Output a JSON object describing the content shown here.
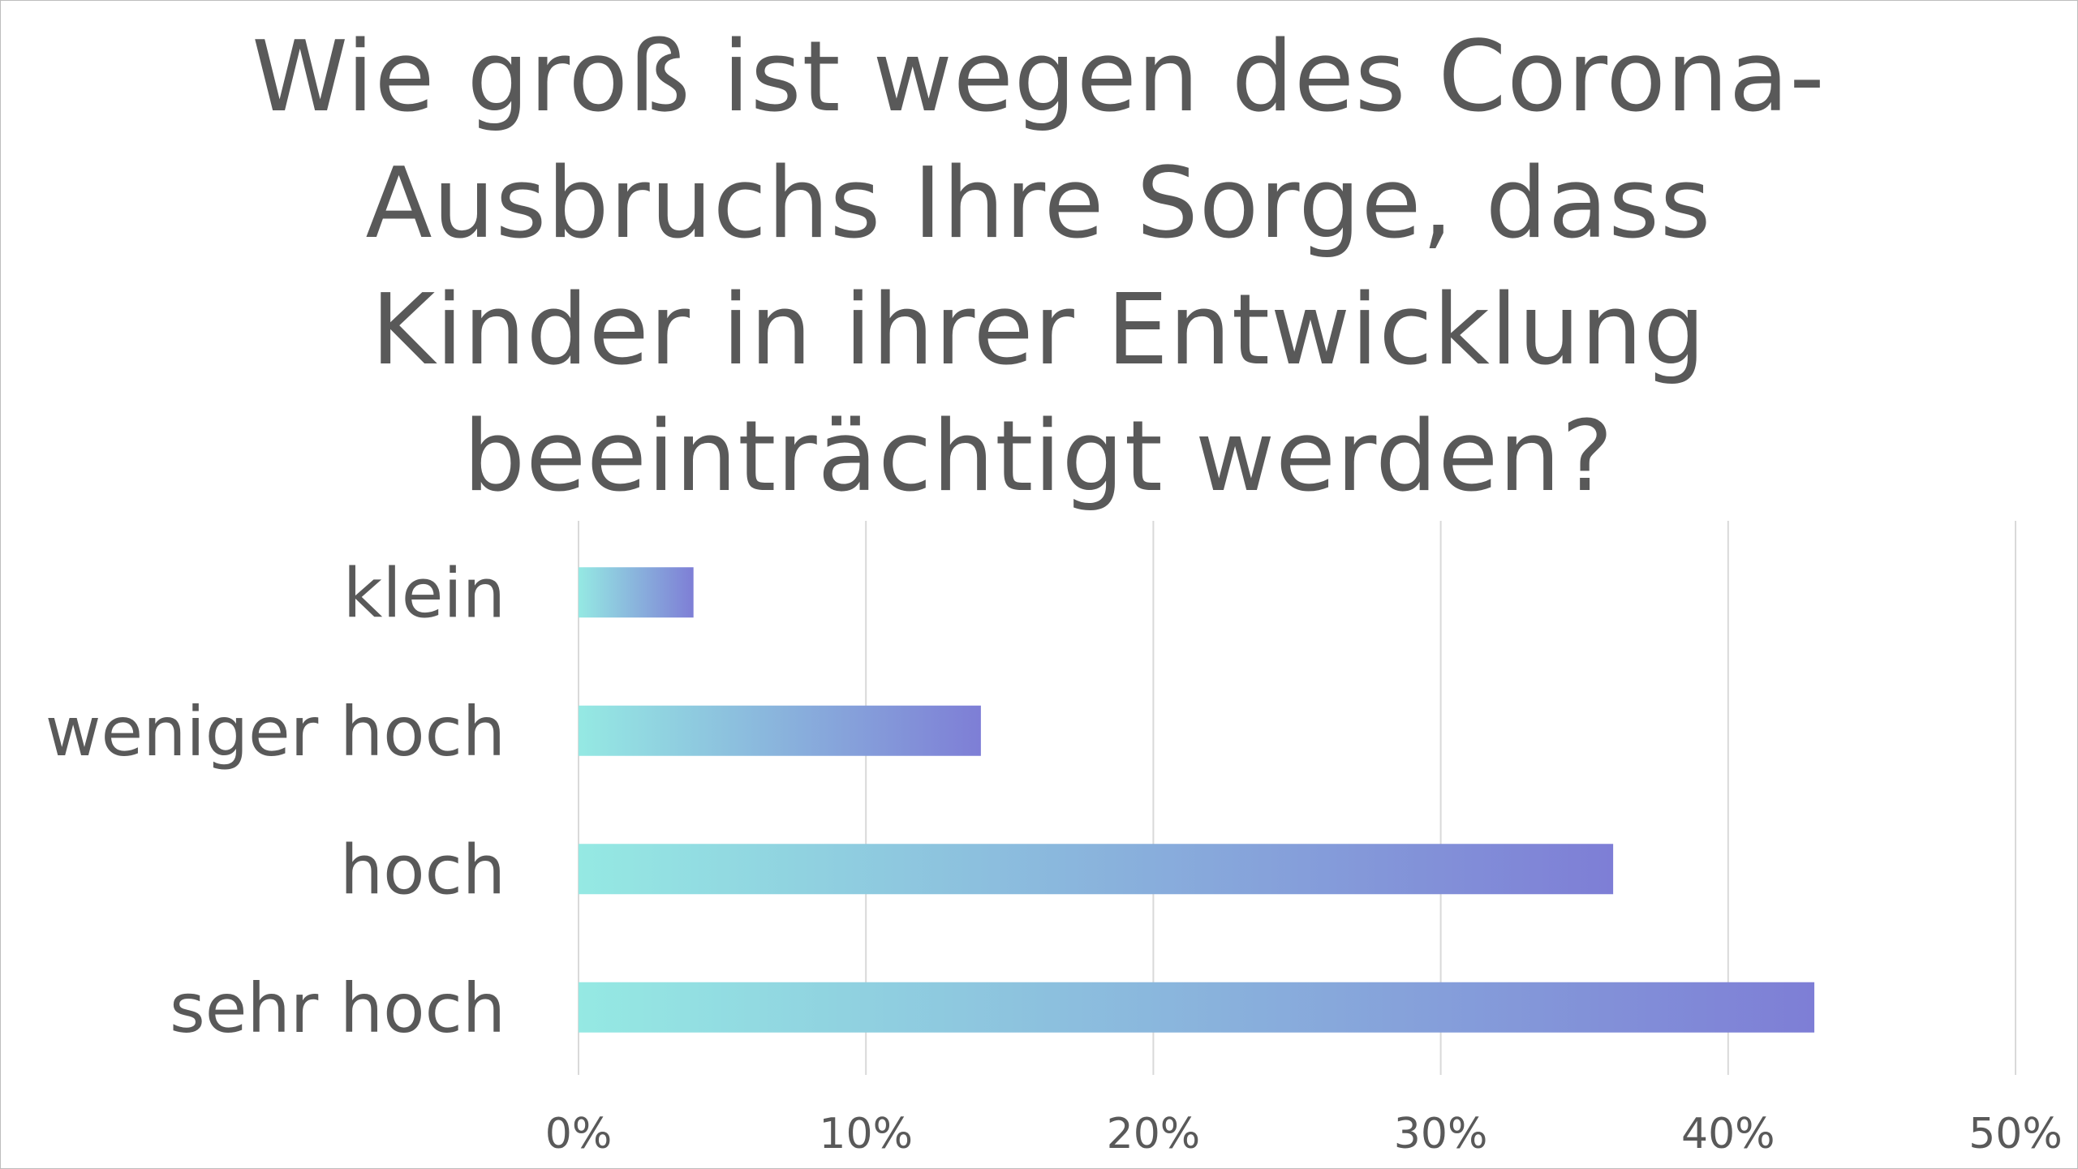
{
  "chart_data": {
    "type": "bar",
    "orientation": "horizontal",
    "title": "Wie groß ist wegen des Corona-Ausbruchs Ihre Sorge, dass Kinder in ihrer Entwicklung beeinträchtigt werden?",
    "title_lines": [
      "Wie groß ist wegen des Corona-",
      "Ausbruchs Ihre Sorge, dass",
      "Kinder in ihrer Entwicklung",
      "beeinträchtigt werden?"
    ],
    "categories": [
      "klein",
      "weniger hoch",
      "hoch",
      "sehr hoch"
    ],
    "values": [
      4,
      14,
      36,
      43
    ],
    "unit": "%",
    "xlim": [
      0,
      50
    ],
    "x_ticks": [
      "0%",
      "10%",
      "20%",
      "30%",
      "40%",
      "50%"
    ],
    "grid": true,
    "legend": "none",
    "bar_gradient": [
      "#95E9E3",
      "#7E7ED6"
    ],
    "text_color": "#595959",
    "grid_color": "#D9D9D9"
  }
}
